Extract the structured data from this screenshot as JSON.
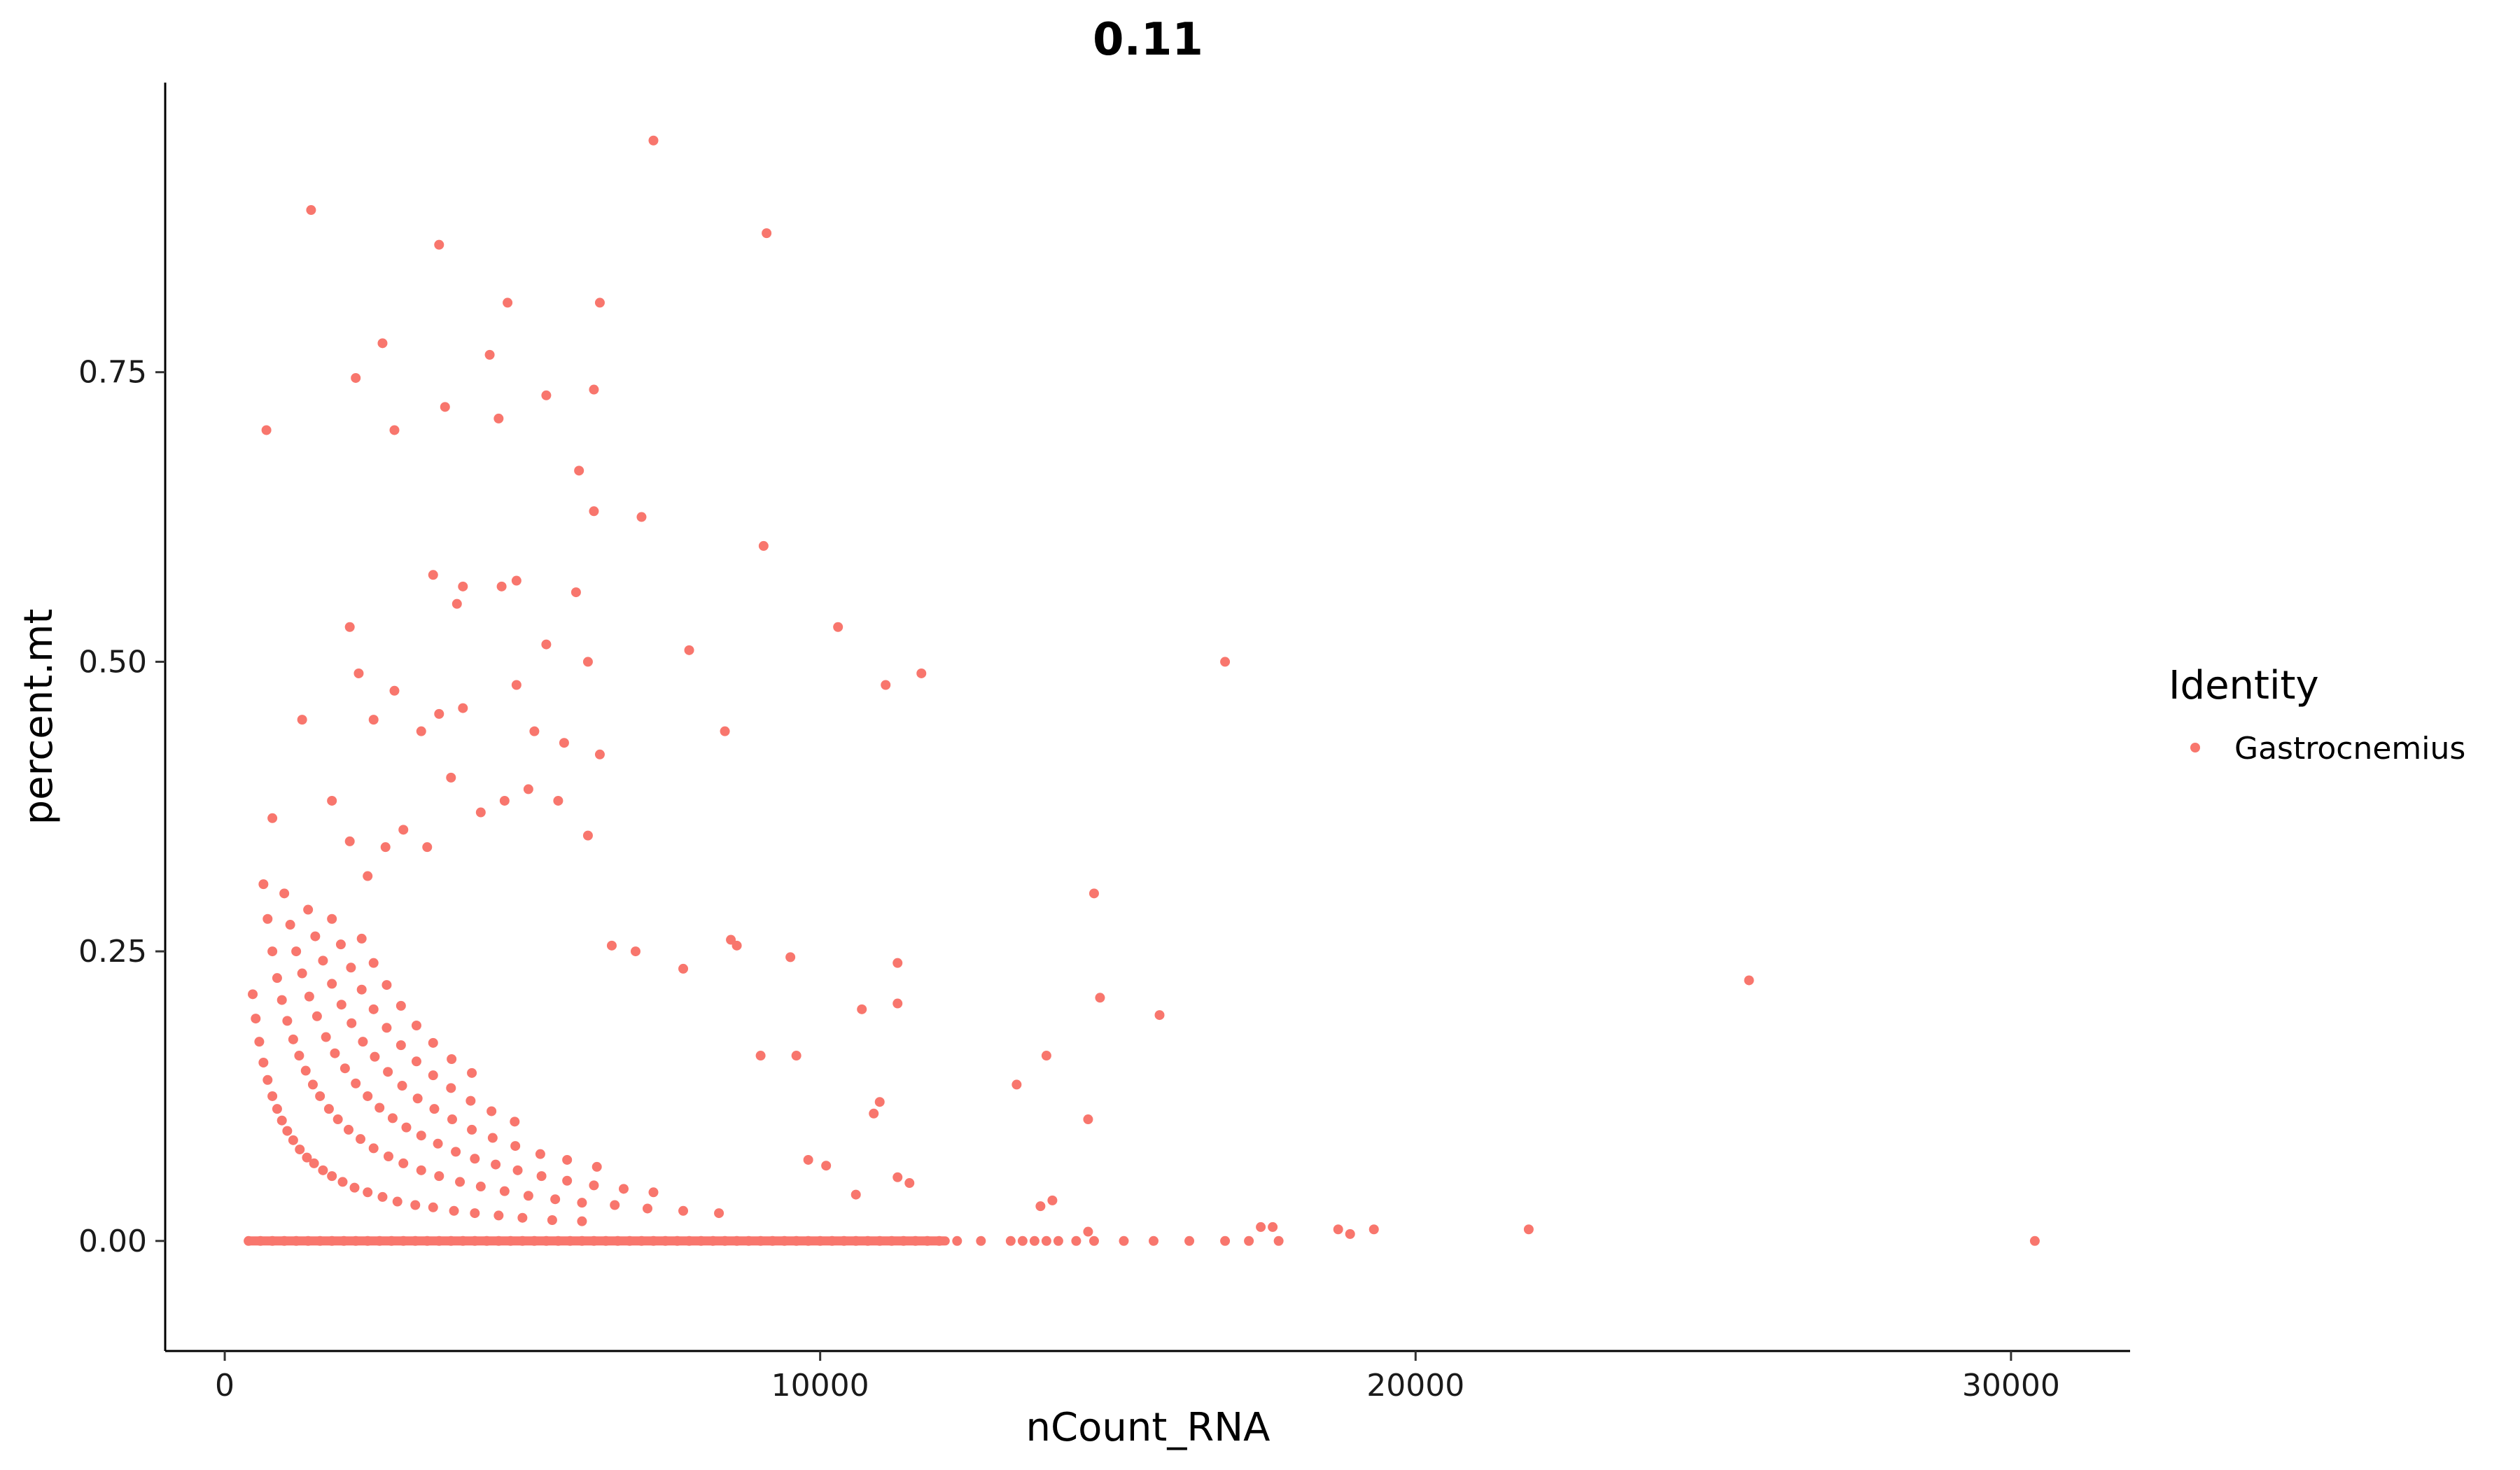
{
  "chart_data": {
    "type": "scatter",
    "title": "0.11",
    "xlabel": "nCount_RNA",
    "ylabel": "percent.mt",
    "xlim": [
      -1000,
      32000
    ],
    "ylim": [
      -0.095,
      1.0
    ],
    "x_ticks": [
      0,
      10000,
      20000,
      30000
    ],
    "x_tick_labels": [
      "0",
      "10000",
      "20000",
      "30000"
    ],
    "y_ticks": [
      0.0,
      0.25,
      0.5,
      0.75
    ],
    "y_tick_labels": [
      "0.00",
      "0.25",
      "0.50",
      "0.75"
    ],
    "grid": false,
    "legend_position": "right",
    "legend_title": "Identity",
    "point_color": "#F8766D",
    "series": [
      {
        "name": "Gastrocnemius",
        "color": "#F8766D",
        "x": [
          400,
          600,
          800,
          1000,
          1200,
          1400,
          1600,
          1800,
          2000,
          2200,
          2400,
          2600,
          2800,
          3000,
          3200,
          3400,
          3600,
          3800,
          4000,
          4200,
          4400,
          4600,
          4800,
          5000,
          5200,
          5400,
          5600,
          5800,
          6000,
          6200,
          6400,
          6600,
          6800,
          7000,
          7200,
          7400,
          7600,
          7800,
          8000,
          8200,
          8400,
          8600,
          8800,
          9000,
          9200,
          9400,
          9600,
          9800,
          10000,
          10200,
          10400,
          10600,
          10800,
          11000,
          11200,
          11400,
          11600,
          11800,
          12000,
          12300,
          12700,
          13200,
          13400,
          13600,
          13800,
          14000,
          14300,
          14600,
          15100,
          15600,
          16200,
          16800,
          17200,
          17700,
          30400,
          470,
          520,
          580,
          650,
          720,
          800,
          880,
          960,
          1050,
          1150,
          1260,
          1380,
          1500,
          1650,
          1800,
          1980,
          2180,
          2400,
          2650,
          2900,
          3200,
          3500,
          3850,
          4200,
          4600,
          5000,
          5500,
          6000,
          650,
          720,
          800,
          880,
          960,
          1050,
          1150,
          1250,
          1360,
          1480,
          1600,
          1750,
          1900,
          2080,
          2280,
          2500,
          2750,
          3000,
          3300,
          3600,
          3950,
          4300,
          4700,
          5100,
          5550,
          6000,
          6550,
          7100,
          7700,
          8300,
          1000,
          1100,
          1200,
          1300,
          1420,
          1550,
          1700,
          1850,
          2020,
          2200,
          2400,
          2600,
          2820,
          3050,
          3300,
          3580,
          3880,
          4200,
          4550,
          4920,
          5320,
          5750,
          6200,
          6700,
          7200,
          1400,
          1520,
          1650,
          1800,
          1960,
          2130,
          2320,
          2520,
          2740,
          2980,
          3240,
          3520,
          3820,
          4150,
          4500,
          4880,
          5300,
          5750,
          6250,
          1800,
          1950,
          2120,
          2300,
          2500,
          2720,
          2960,
          3220,
          3500,
          3800,
          4130,
          4480,
          4870,
          2300,
          2500,
          2720,
          2960,
          3220,
          3500,
          3810,
          4150,
          700,
          1450,
          3600,
          4750,
          7200,
          9100,
          2200,
          2650,
          2850,
          3700,
          4450,
          4600,
          5400,
          6200,
          6300,
          5950,
          6200,
          7000,
          9050,
          3500,
          4000,
          4650,
          4900,
          3900,
          5400,
          5900,
          6100,
          2100,
          2250,
          2500,
          2850,
          3300,
          3600,
          4000,
          4900,
          5200,
          5700,
          6300,
          7800,
          8400,
          10300,
          11100,
          11700,
          16800,
          800,
          1300,
          1800,
          2100,
          2400,
          2700,
          3000,
          3400,
          3800,
          4300,
          4700,
          5100,
          5600,
          6100,
          6500,
          6900,
          7700,
          8500,
          9500,
          9600,
          11000,
          11300,
          14600,
          14700,
          15700,
          25600,
          8600,
          9000,
          10700,
          10900,
          11300,
          13300,
          13800,
          14500,
          9800,
          10100,
          10600,
          11300,
          11500,
          13700,
          13900,
          14500,
          17400,
          17600,
          18700,
          18900,
          19300,
          21900
        ],
        "y": [
          0.0,
          0.0,
          0.0,
          0.0,
          0.0,
          0.0,
          0.0,
          0.0,
          0.0,
          0.0,
          0.0,
          0.0,
          0.0,
          0.0,
          0.0,
          0.0,
          0.0,
          0.0,
          0.0,
          0.0,
          0.0,
          0.0,
          0.0,
          0.0,
          0.0,
          0.0,
          0.0,
          0.0,
          0.0,
          0.0,
          0.0,
          0.0,
          0.0,
          0.0,
          0.0,
          0.0,
          0.0,
          0.0,
          0.0,
          0.0,
          0.0,
          0.0,
          0.0,
          0.0,
          0.0,
          0.0,
          0.0,
          0.0,
          0.0,
          0.0,
          0.0,
          0.0,
          0.0,
          0.0,
          0.0,
          0.0,
          0.0,
          0.0,
          0.0,
          0.0,
          0.0,
          0.0,
          0.0,
          0.0,
          0.0,
          0.0,
          0.0,
          0.0,
          0.0,
          0.0,
          0.0,
          0.0,
          0.0,
          0.0,
          0.0,
          0.213,
          0.192,
          0.172,
          0.154,
          0.139,
          0.125,
          0.114,
          0.104,
          0.095,
          0.087,
          0.079,
          0.072,
          0.067,
          0.061,
          0.056,
          0.051,
          0.046,
          0.042,
          0.038,
          0.034,
          0.031,
          0.029,
          0.026,
          0.024,
          0.022,
          0.02,
          0.018,
          0.017,
          0.308,
          0.278,
          0.25,
          0.227,
          0.208,
          0.19,
          0.174,
          0.16,
          0.147,
          0.135,
          0.125,
          0.114,
          0.105,
          0.096,
          0.088,
          0.08,
          0.073,
          0.067,
          0.061,
          0.056,
          0.051,
          0.047,
          0.043,
          0.039,
          0.036,
          0.033,
          0.031,
          0.028,
          0.026,
          0.024,
          0.3,
          0.273,
          0.25,
          0.231,
          0.211,
          0.194,
          0.176,
          0.162,
          0.149,
          0.136,
          0.125,
          0.115,
          0.106,
          0.098,
          0.091,
          0.084,
          0.077,
          0.071,
          0.066,
          0.061,
          0.056,
          0.052,
          0.048,
          0.045,
          0.042,
          0.286,
          0.263,
          0.242,
          0.222,
          0.204,
          0.188,
          0.172,
          0.159,
          0.146,
          0.134,
          0.123,
          0.114,
          0.105,
          0.096,
          0.089,
          0.082,
          0.075,
          0.07,
          0.064,
          0.278,
          0.256,
          0.236,
          0.217,
          0.2,
          0.184,
          0.169,
          0.155,
          0.143,
          0.132,
          0.121,
          0.112,
          0.103,
          0.261,
          0.24,
          0.221,
          0.203,
          0.186,
          0.171,
          0.157,
          0.145,
          0.7,
          0.89,
          0.86,
          0.81,
          0.95,
          0.87,
          0.745,
          0.775,
          0.7,
          0.72,
          0.765,
          0.71,
          0.73,
          0.735,
          0.81,
          0.665,
          0.63,
          0.625,
          0.6,
          0.575,
          0.565,
          0.565,
          0.57,
          0.55,
          0.515,
          0.56,
          0.5,
          0.53,
          0.49,
          0.45,
          0.475,
          0.44,
          0.455,
          0.46,
          0.48,
          0.44,
          0.43,
          0.42,
          0.51,
          0.44,
          0.53,
          0.48,
          0.49,
          0.5,
          0.365,
          0.45,
          0.38,
          0.345,
          0.315,
          0.34,
          0.355,
          0.34,
          0.4,
          0.37,
          0.38,
          0.39,
          0.38,
          0.35,
          0.255,
          0.25,
          0.235,
          0.26,
          0.245,
          0.16,
          0.12,
          0.205,
          0.3,
          0.21,
          0.195,
          0.225,
          0.255,
          0.16,
          0.2,
          0.11,
          0.24,
          0.135,
          0.16,
          0.105,
          0.07,
          0.065,
          0.04,
          0.055,
          0.05,
          0.03,
          0.035,
          0.008,
          0.012,
          0.012,
          0.01,
          0.006,
          0.01,
          0.01
        ]
      }
    ]
  }
}
